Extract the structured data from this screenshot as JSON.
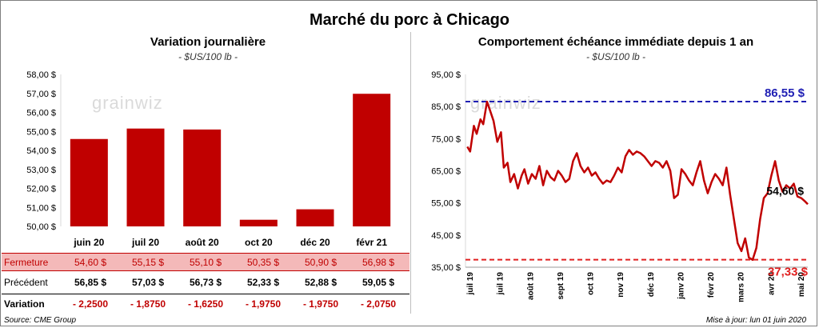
{
  "title": "Marché du porc à Chicago",
  "footer": {
    "source": "Source: CME Group",
    "updated": "Mise à jour: lun 01 juin 2020"
  },
  "watermark": "grainwiz",
  "colors": {
    "bar": "#c00000",
    "line": "#c00000",
    "high": "#1f1fb4",
    "low": "#e02020"
  },
  "left": {
    "title": "Variation  journalière",
    "unit": "- $US/100 lb -",
    "table": {
      "close_label": "Fermeture",
      "prev_label": "Précédent",
      "var_label": "Variation",
      "close": [
        "54,60  $",
        "55,15  $",
        "55,10  $",
        "50,35  $",
        "50,90  $",
        "56,98  $"
      ],
      "prev": [
        "56,85  $",
        "57,03  $",
        "56,73  $",
        "52,33  $",
        "52,88  $",
        "59,05  $"
      ],
      "var": [
        "- 2,2500",
        "- 1,8750",
        "- 1,6250",
        "- 1,9750",
        "- 1,9750",
        "- 2,0750"
      ]
    }
  },
  "right": {
    "title": "Comportement  échéance immédiate depuis 1 an",
    "unit": "- $US/100 lb -"
  },
  "chart_data": [
    {
      "type": "bar",
      "title": "Variation  journalière",
      "categories": [
        "juin 20",
        "juil 20",
        "août 20",
        "oct 20",
        "déc 20",
        "févr 21"
      ],
      "values": [
        54.6,
        55.15,
        55.1,
        50.35,
        50.9,
        56.98
      ],
      "ylim": [
        50,
        58
      ],
      "yticks": [
        "50,00 $",
        "51,00 $",
        "52,00 $",
        "53,00 $",
        "54,00 $",
        "55,00 $",
        "56,00 $",
        "57,00 $",
        "58,00 $"
      ],
      "grid": false
    },
    {
      "type": "line",
      "title": "Comportement  échéance immédiate depuis 1 an",
      "ylim": [
        35,
        95
      ],
      "yticks": [
        "35,00 $",
        "45,00 $",
        "55,00 $",
        "65,00 $",
        "75,00 $",
        "85,00 $",
        "95,00 $"
      ],
      "xlim": [
        "2019-06-01",
        "2020-06-01"
      ],
      "xticks": [
        "juil 19",
        "juil 19",
        "août 19",
        "sept 19",
        "oct 19",
        "nov 19",
        "déc 19",
        "janv 20",
        "févr 20",
        "mars 20",
        "avr 20",
        "mai 20"
      ],
      "high": {
        "value": 86.55,
        "label": "86,55 $"
      },
      "low": {
        "value": 37.33,
        "label": "37,33 $"
      },
      "last_label": "54,60 $",
      "series": [
        {
          "x": [
            "2019-06-03",
            "2019-06-06",
            "2019-06-10",
            "2019-06-13",
            "2019-06-17",
            "2019-06-20",
            "2019-06-24",
            "2019-06-27",
            "2019-07-01",
            "2019-07-05",
            "2019-07-09",
            "2019-07-12",
            "2019-07-16",
            "2019-07-19",
            "2019-07-23",
            "2019-07-27",
            "2019-07-31",
            "2019-08-03",
            "2019-08-07",
            "2019-08-11",
            "2019-08-15",
            "2019-08-19",
            "2019-08-23",
            "2019-08-27",
            "2019-08-31",
            "2019-09-04",
            "2019-09-08",
            "2019-09-12",
            "2019-09-16",
            "2019-09-20",
            "2019-09-24",
            "2019-09-28",
            "2019-10-02",
            "2019-10-06",
            "2019-10-10",
            "2019-10-14",
            "2019-10-18",
            "2019-10-22",
            "2019-10-26",
            "2019-10-30",
            "2019-11-03",
            "2019-11-07",
            "2019-11-11",
            "2019-11-15",
            "2019-11-19",
            "2019-11-23",
            "2019-11-27",
            "2019-12-01",
            "2019-12-05",
            "2019-12-09",
            "2019-12-13",
            "2019-12-17",
            "2019-12-21",
            "2019-12-25",
            "2019-12-29",
            "2020-01-02",
            "2020-01-06",
            "2020-01-10",
            "2020-01-14",
            "2020-01-18",
            "2020-01-22",
            "2020-01-26",
            "2020-01-30",
            "2020-02-03",
            "2020-02-07",
            "2020-02-11",
            "2020-02-15",
            "2020-02-19",
            "2020-02-23",
            "2020-02-27",
            "2020-03-02",
            "2020-03-06",
            "2020-03-10",
            "2020-03-14",
            "2020-03-18",
            "2020-03-22",
            "2020-03-26",
            "2020-03-30",
            "2020-04-03",
            "2020-04-07",
            "2020-04-11",
            "2020-04-15",
            "2020-04-19",
            "2020-04-23",
            "2020-04-27",
            "2020-05-01",
            "2020-05-05",
            "2020-05-09",
            "2020-05-13",
            "2020-05-17",
            "2020-05-21",
            "2020-05-25",
            "2020-05-29",
            "2020-06-01"
          ],
          "values": [
            72.5,
            71.0,
            79.0,
            76.5,
            81.0,
            79.5,
            86.5,
            84.0,
            80.5,
            74.0,
            77.0,
            66.0,
            67.5,
            61.5,
            64.0,
            59.5,
            63.5,
            65.5,
            61.0,
            64.0,
            62.5,
            66.5,
            60.5,
            65.0,
            63.0,
            62.0,
            65.0,
            63.5,
            61.5,
            62.5,
            68.0,
            70.5,
            66.5,
            64.5,
            66.0,
            63.5,
            64.5,
            62.5,
            61.0,
            62.0,
            61.5,
            63.5,
            66.0,
            64.5,
            69.5,
            71.5,
            70.0,
            71.0,
            70.5,
            69.5,
            68.0,
            66.5,
            68.0,
            67.5,
            66.0,
            68.0,
            65.0,
            56.5,
            57.5,
            65.5,
            64.0,
            62.0,
            60.5,
            64.5,
            68.0,
            62.0,
            58.0,
            61.5,
            64.0,
            62.5,
            60.5,
            66.0,
            57.5,
            50.0,
            42.5,
            40.0,
            44.0,
            38.0,
            37.3,
            41.0,
            50.0,
            56.5,
            58.0,
            63.5,
            68.0,
            62.0,
            58.5,
            60.5,
            59.5,
            61.0,
            57.0,
            56.5,
            55.5,
            54.6
          ]
        }
      ]
    }
  ]
}
